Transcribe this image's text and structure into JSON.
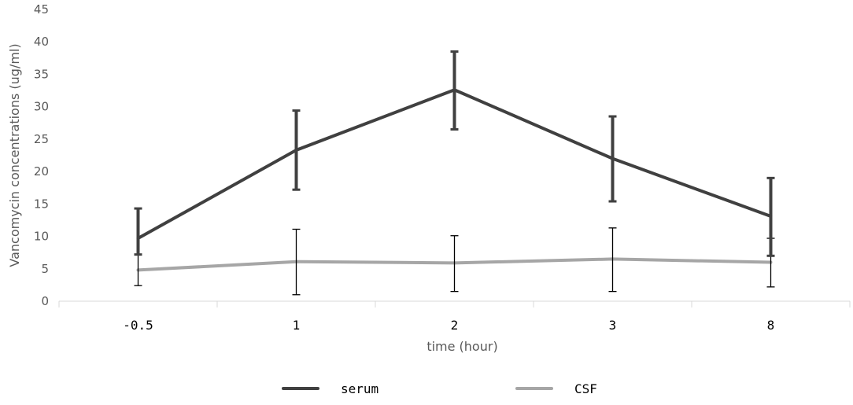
{
  "chart_data": {
    "type": "line",
    "categories": [
      "-0.5",
      "1",
      "2",
      "3",
      "8"
    ],
    "xlabel": "time (hour)",
    "ylabel": "Vancomycin concentrations (ug/ml)",
    "ylim": [
      0,
      45
    ],
    "yticks": [
      0,
      5,
      10,
      15,
      20,
      25,
      30,
      35,
      40,
      45
    ],
    "grid": false,
    "legend_position": "bottom",
    "series": [
      {
        "name": "serum",
        "color": "#404040",
        "values": [
          9.7,
          23.3,
          32.6,
          22.0,
          13.1
        ],
        "error_low": [
          7.2,
          17.2,
          26.5,
          15.4,
          7.0
        ],
        "error_high": [
          14.3,
          29.4,
          38.5,
          28.5,
          19.0
        ]
      },
      {
        "name": "CSF",
        "color": "#a6a6a6",
        "values": [
          4.8,
          6.1,
          5.9,
          6.5,
          6.0
        ],
        "error_low": [
          2.4,
          1.0,
          1.5,
          1.5,
          2.2
        ],
        "error_high": [
          7.2,
          11.1,
          10.1,
          11.3,
          9.7
        ]
      }
    ]
  }
}
